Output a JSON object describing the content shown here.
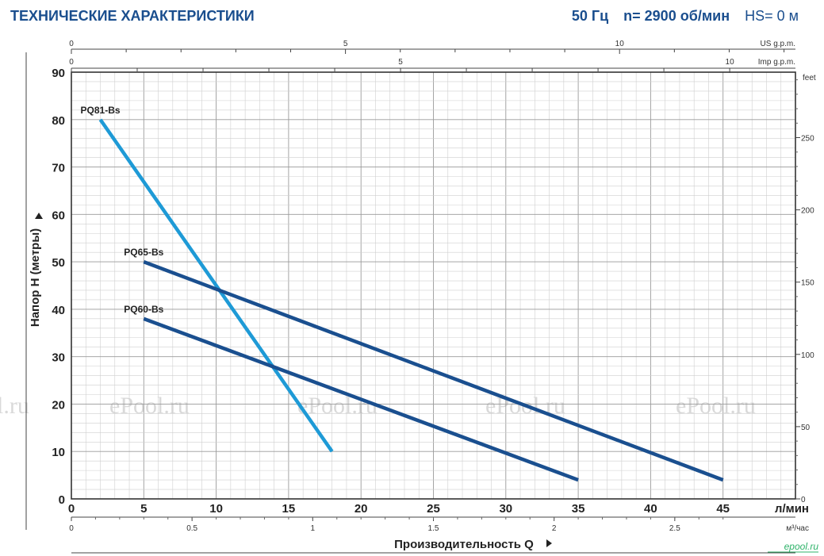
{
  "header": {
    "title": "ТЕХНИЧЕСКИЕ ХАРАКТЕРИСТИКИ",
    "frequency": "50 Гц",
    "speed": "n= 2900 об/мин",
    "suction": "HS= 0 м"
  },
  "watermarks": [
    "l.ru",
    "ePool.ru",
    "ePool.ru",
    "ePool.ru",
    "ePool.ru"
  ],
  "brand_logo": "epool.ru",
  "colors": {
    "curve_blue": "#1a4f8f",
    "curve_light": "#1e9ad6",
    "title": "#1a4e8e",
    "grid": "#9e9e9e"
  },
  "chart_data": {
    "type": "line",
    "xlabel": "Производительность Q",
    "ylabel": "Напор H (метры)",
    "x_unit": "л/мин",
    "x_unit_m3": "м³/час",
    "x_unit_us": "US g.p.m.",
    "x_unit_imp": "Imp g.p.m.",
    "y_unit_right": "feet",
    "xlim": [
      0,
      50
    ],
    "ylim": [
      0,
      90
    ],
    "x_ticks": [
      0,
      5,
      10,
      15,
      20,
      25,
      30,
      35,
      40,
      45
    ],
    "y_ticks": [
      0,
      10,
      20,
      30,
      40,
      50,
      60,
      70,
      80,
      90
    ],
    "m3h_ticks": [
      "0",
      "0.5",
      "1",
      "1.5",
      "2",
      "2.5"
    ],
    "us_gpm_ticks": [
      "0",
      "5",
      "10"
    ],
    "imp_gpm_ticks": [
      "0",
      "5",
      "10"
    ],
    "feet_ticks": [
      "0",
      "50",
      "100",
      "150",
      "200",
      "250"
    ],
    "grid": true,
    "series": [
      {
        "name": "PQ81-Bs",
        "x": [
          2,
          18
        ],
        "y": [
          80,
          10
        ],
        "color": "#1e9ad6"
      },
      {
        "name": "PQ65-Bs",
        "x": [
          5,
          45
        ],
        "y": [
          50,
          4
        ],
        "color": "#1a4f8f"
      },
      {
        "name": "PQ60-Bs",
        "x": [
          5,
          35
        ],
        "y": [
          38,
          4
        ],
        "color": "#1a4f8f"
      }
    ]
  }
}
